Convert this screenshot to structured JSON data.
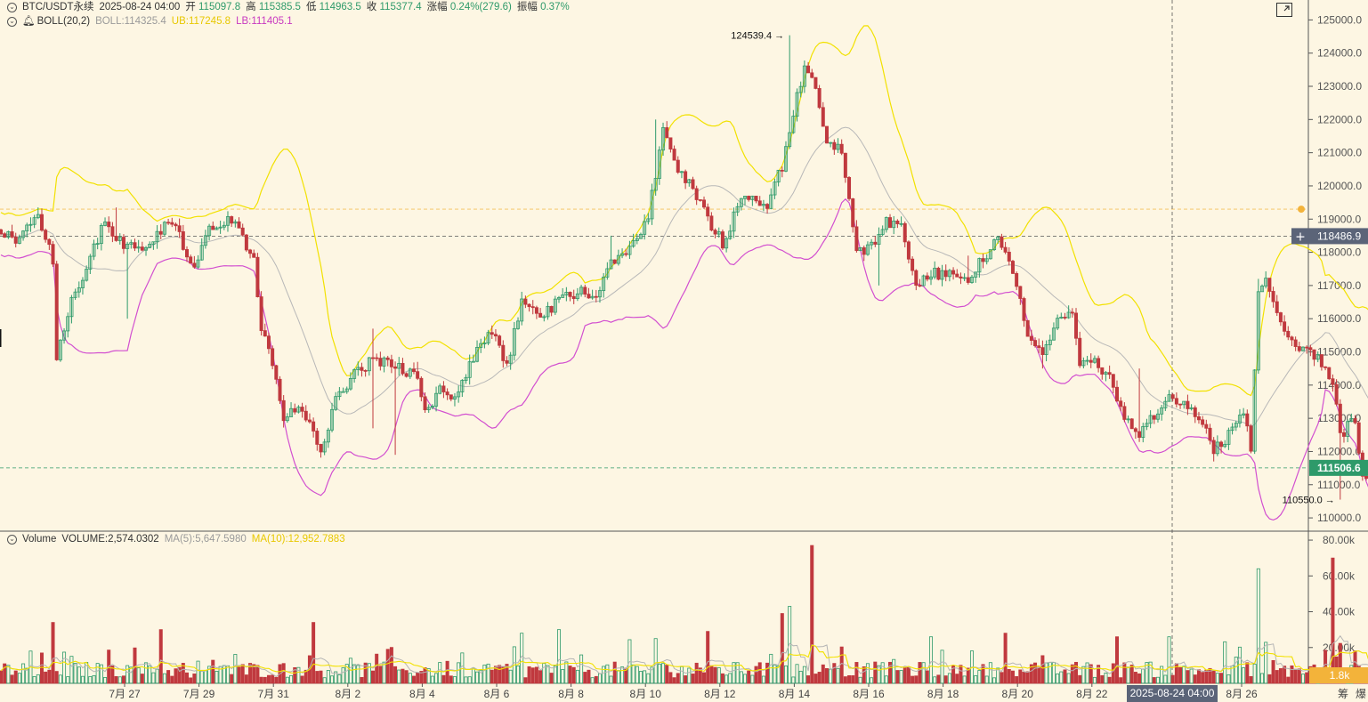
{
  "header": {
    "symbol": "BTC/USDT永续",
    "datetime": "2025-08-24 04:00",
    "open_label": "开",
    "open": "115097.8",
    "high_label": "高",
    "high": "115385.5",
    "low_label": "低",
    "low": "114963.5",
    "close_label": "收",
    "close": "115377.4",
    "change_label": "涨幅",
    "change": "0.24%(279.6)",
    "amplitude_label": "振幅",
    "amplitude": "0.37%"
  },
  "boll": {
    "name": "BOLL(20,2)",
    "mid": "BOLL:114325.4",
    "ub": "UB:117245.8",
    "lb": "LB:111405.1"
  },
  "volume_header": {
    "name": "Volume",
    "volume": "VOLUME:2,574.0302",
    "ma5": "MA(5):5,647.5980",
    "ma10": "MA(10):12,952.7883"
  },
  "price_axis": {
    "ticks": [
      "125000.0",
      "124000.0",
      "123000.0",
      "122000.0",
      "121000.0",
      "120000.0",
      "119000.0",
      "118000.0",
      "117000.0",
      "116000.0",
      "115000.0",
      "114000.0",
      "113000.0",
      "112000.0",
      "111000.0",
      "110000.0"
    ],
    "crosshair_label": "118486.9",
    "current_label": "111506.6"
  },
  "volume_axis": {
    "ticks": [
      "80.00k",
      "60.00k",
      "40.00k",
      "20.00k"
    ],
    "current_label": "1.8k"
  },
  "time_axis": {
    "ticks": [
      "7月 27",
      "7月 29",
      "7月 31",
      "8月 2",
      "8月 4",
      "8月 6",
      "8月 8",
      "8月 10",
      "8月 12",
      "8月 14",
      "8月 16",
      "8月 18",
      "8月 20",
      "8月 22",
      "8月 26"
    ],
    "crosshair_label": "2025-08-24 04:00"
  },
  "annotations": {
    "high_label": "124539.4",
    "low_label": "110550.0"
  },
  "corner_labels": {
    "left": "筹",
    "right": "爆"
  },
  "colors": {
    "background": "#fdf6e3",
    "up": "#2e9a6a",
    "down": "#c0393e",
    "boll_ub": "#f2e100",
    "boll_lb": "#d24fd0",
    "boll_mid": "#b8b8b8",
    "current_price_bg": "#2e9a6a",
    "crosshair_bg": "#5b6478",
    "volume_label_bg": "#f3b33a"
  },
  "chart_data": {
    "type": "candlestick",
    "interval_hours": 4,
    "price_ylim": [
      109600,
      125600
    ],
    "volume_ylim": [
      0,
      85000
    ],
    "key_points": [
      [
        0,
        118700
      ],
      [
        4,
        118400
      ],
      [
        10,
        119100
      ],
      [
        14,
        117800
      ],
      [
        15,
        114900
      ],
      [
        18,
        116200
      ],
      [
        24,
        117800
      ],
      [
        28,
        119000
      ],
      [
        32,
        118300
      ],
      [
        40,
        118200
      ],
      [
        46,
        119000
      ],
      [
        52,
        117500
      ],
      [
        56,
        118700
      ],
      [
        62,
        119000
      ],
      [
        68,
        117800
      ],
      [
        70,
        115800
      ],
      [
        74,
        114200
      ],
      [
        76,
        112900
      ],
      [
        80,
        113500
      ],
      [
        84,
        112600
      ],
      [
        86,
        112100
      ],
      [
        90,
        113500
      ],
      [
        94,
        114200
      ],
      [
        100,
        114800
      ],
      [
        106,
        114600
      ],
      [
        112,
        114200
      ],
      [
        114,
        113100
      ],
      [
        118,
        113800
      ],
      [
        122,
        113600
      ],
      [
        126,
        114600
      ],
      [
        132,
        115700
      ],
      [
        136,
        114500
      ],
      [
        140,
        116600
      ],
      [
        144,
        116100
      ],
      [
        150,
        116500
      ],
      [
        156,
        116900
      ],
      [
        160,
        116600
      ],
      [
        164,
        117700
      ],
      [
        170,
        118300
      ],
      [
        174,
        119000
      ],
      [
        178,
        121800
      ],
      [
        182,
        120400
      ],
      [
        186,
        120000
      ],
      [
        190,
        119000
      ],
      [
        194,
        118300
      ],
      [
        200,
        119800
      ],
      [
        206,
        119400
      ],
      [
        210,
        120600
      ],
      [
        214,
        122700
      ],
      [
        216,
        123600
      ],
      [
        218,
        123300
      ],
      [
        222,
        121400
      ],
      [
        226,
        121000
      ],
      [
        230,
        118000
      ],
      [
        234,
        118200
      ],
      [
        238,
        118900
      ],
      [
        242,
        118800
      ],
      [
        246,
        117000
      ],
      [
        250,
        117400
      ],
      [
        254,
        117300
      ],
      [
        260,
        117200
      ],
      [
        264,
        117800
      ],
      [
        268,
        118500
      ],
      [
        272,
        117500
      ],
      [
        276,
        115400
      ],
      [
        280,
        115000
      ],
      [
        284,
        115900
      ],
      [
        288,
        116200
      ],
      [
        290,
        114700
      ],
      [
        294,
        114700
      ],
      [
        298,
        114200
      ],
      [
        302,
        113000
      ],
      [
        306,
        112500
      ],
      [
        310,
        113100
      ],
      [
        314,
        113800
      ],
      [
        318,
        113400
      ],
      [
        322,
        113100
      ],
      [
        326,
        112000
      ],
      [
        330,
        112500
      ],
      [
        334,
        113200
      ],
      [
        336,
        112100
      ],
      [
        338,
        116900
      ],
      [
        340,
        117100
      ],
      [
        344,
        115900
      ],
      [
        348,
        115200
      ],
      [
        352,
        115100
      ],
      [
        356,
        114500
      ],
      [
        358,
        114100
      ],
      [
        360,
        112500
      ],
      [
        364,
        113000
      ],
      [
        366,
        111100
      ],
      [
        368,
        111300
      ],
      [
        370,
        111500
      ]
    ],
    "high_marker": 124539.4,
    "low_marker": 110550.0,
    "spikes_high": {
      "31": 119350,
      "100": 115700,
      "112": 114700,
      "164": 118500,
      "176": 122000,
      "212": 124539.4,
      "260": 117900,
      "306": 114500,
      "338": 117200
    },
    "spikes_low": {
      "16": 114700,
      "34": 116000,
      "100": 112700,
      "106": 111900,
      "140": 115800,
      "236": 117000,
      "280": 114500,
      "326": 111700,
      "360": 110550.0
    },
    "volume_spikes": {
      "14": 34000,
      "43": 30000,
      "84": 34000,
      "140": 28000,
      "150": 30000,
      "176": 25000,
      "190": 29000,
      "210": 39000,
      "212": 43000,
      "218": 77000,
      "250": 26000,
      "270": 28000,
      "300": 26000,
      "314": 26000,
      "338": 64000,
      "358": 70000
    }
  }
}
